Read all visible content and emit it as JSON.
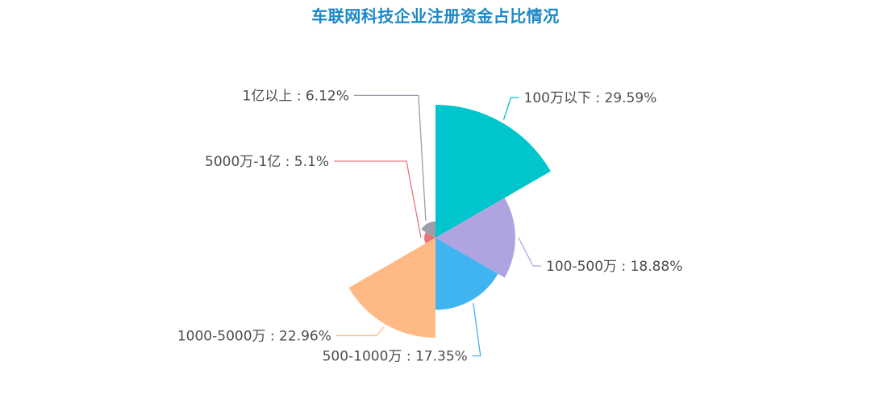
{
  "title": "车联网科技企业注册资金占比情况",
  "colors": {
    "title": "#1a87c6"
  },
  "chart_data": {
    "type": "pie",
    "subtype": "rose-area",
    "title": "车联网科技企业注册资金占比情况",
    "label_separator": " : ",
    "label_suffix": "%",
    "categories": [
      "100万以下",
      "100-500万",
      "500-1000万",
      "1000-5000万",
      "5000万-1亿",
      "1亿以上"
    ],
    "values": [
      29.59,
      18.88,
      17.35,
      22.96,
      5.1,
      6.12
    ],
    "colors": [
      "#00c5cc",
      "#b0a4e0",
      "#3fb4f0",
      "#ffb984",
      "#e9747c",
      "#9a9ea8"
    ],
    "legend": "none"
  }
}
